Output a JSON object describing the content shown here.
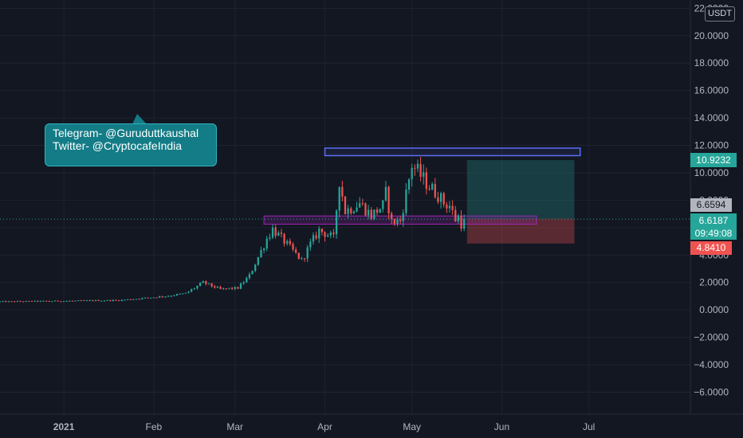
{
  "currency_label": "USDT",
  "callout": {
    "line1": "Telegram- @Guruduttkaushal",
    "line2": "Twitter- @CryptocafeIndia"
  },
  "price_labels": {
    "target": "10.9232",
    "last_close": "6.6594",
    "current": "6.6187",
    "countdown": "09:49:08",
    "stop": "4.8410"
  },
  "chart_data": {
    "type": "candlestick",
    "title": "",
    "y_ticks": [
      22,
      20,
      18,
      16,
      14,
      12,
      10,
      8,
      6,
      4,
      2,
      0,
      -2,
      -4,
      -6
    ],
    "y_tick_labels": [
      "22.0000",
      "20.0000",
      "18.0000",
      "16.0000",
      "14.0000",
      "12.0000",
      "10.0000",
      "8.0000",
      "6.0000",
      "4.0000",
      "2.0000",
      "0.0000",
      "−2.0000",
      "−4.0000",
      "−6.0000"
    ],
    "ylim": [
      -7.6,
      22.6
    ],
    "x_ticks": [
      {
        "label": "2021",
        "date": "2021-01-01",
        "bold": true
      },
      {
        "label": "Feb",
        "date": "2021-02-01",
        "bold": false
      },
      {
        "label": "Mar",
        "date": "2021-03-01",
        "bold": false
      },
      {
        "label": "Apr",
        "date": "2021-04-01",
        "bold": false
      },
      {
        "label": "May",
        "date": "2021-05-01",
        "bold": false
      },
      {
        "label": "Jun",
        "date": "2021-06-01",
        "bold": false
      },
      {
        "label": "Jul",
        "date": "2021-07-01",
        "bold": false
      }
    ],
    "xlim": [
      "2020-12-10",
      "2021-08-05"
    ],
    "grid": true,
    "colors": {
      "up": "#26a69a",
      "down": "#ef5350"
    },
    "key_points": [
      {
        "date": "2020-12-10",
        "close": 0.6
      },
      {
        "date": "2021-01-01",
        "close": 0.65
      },
      {
        "date": "2021-01-20",
        "close": 0.7
      },
      {
        "date": "2021-01-28",
        "close": 0.85
      },
      {
        "date": "2021-02-05",
        "close": 1.0
      },
      {
        "date": "2021-02-12",
        "close": 1.2
      },
      {
        "date": "2021-02-18",
        "close": 2.0
      },
      {
        "date": "2021-02-24",
        "close": 1.5
      },
      {
        "date": "2021-03-02",
        "close": 1.6
      },
      {
        "date": "2021-03-06",
        "close": 2.5
      },
      {
        "date": "2021-03-12",
        "close": 5.2
      },
      {
        "date": "2021-03-14",
        "close": 5.9
      },
      {
        "date": "2021-03-18",
        "close": 5.0
      },
      {
        "date": "2021-03-24",
        "close": 3.6
      },
      {
        "date": "2021-03-27",
        "close": 4.8
      },
      {
        "date": "2021-03-30",
        "close": 5.8
      },
      {
        "date": "2021-04-02",
        "close": 5.5
      },
      {
        "date": "2021-04-04",
        "close": 5.2
      },
      {
        "date": "2021-04-06",
        "close": 9.5
      },
      {
        "date": "2021-04-08",
        "close": 7.2
      },
      {
        "date": "2021-04-13",
        "close": 7.8
      },
      {
        "date": "2021-04-17",
        "close": 6.9
      },
      {
        "date": "2021-04-21",
        "close": 7.6
      },
      {
        "date": "2021-04-22",
        "close": 8.5
      },
      {
        "date": "2021-04-24",
        "close": 6.4
      },
      {
        "date": "2021-04-27",
        "close": 6.5
      },
      {
        "date": "2021-04-29",
        "close": 8.5
      },
      {
        "date": "2021-05-01",
        "close": 10.6
      },
      {
        "date": "2021-05-04",
        "close": 9.8
      },
      {
        "date": "2021-05-07",
        "close": 9.0
      },
      {
        "date": "2021-05-10",
        "close": 8.4
      },
      {
        "date": "2021-05-12",
        "close": 7.8
      },
      {
        "date": "2021-05-14",
        "close": 7.6
      },
      {
        "date": "2021-05-16",
        "close": 6.6
      },
      {
        "date": "2021-05-17",
        "close": 6.8
      },
      {
        "date": "2021-05-18",
        "close": 6.3
      },
      {
        "date": "2021-05-19",
        "close": 6.62
      }
    ],
    "resistance_box": {
      "date_start": "2021-04-01",
      "date_end": "2021-06-28",
      "top": 11.8,
      "bottom": 11.25,
      "color": "#5b6df5"
    },
    "support_box": {
      "date_start": "2021-03-11",
      "date_end": "2021-06-13",
      "top": 6.85,
      "bottom": 6.25,
      "color": "#9c27b0"
    },
    "position": {
      "date_start": "2021-05-20",
      "date_end": "2021-06-26",
      "entry": 6.6594,
      "target": 10.9232,
      "stop": 4.841
    },
    "current_price": 6.6187
  }
}
